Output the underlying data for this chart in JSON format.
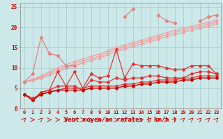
{
  "x": [
    0,
    1,
    2,
    3,
    4,
    5,
    6,
    7,
    8,
    9,
    10,
    11,
    12,
    13,
    14,
    15,
    16,
    17,
    18,
    19,
    20,
    21,
    22,
    23
  ],
  "jagged_light1": [
    6.5,
    8.5,
    17.5,
    13.5,
    13.0,
    10.5,
    10.5,
    null,
    null,
    null,
    null,
    null,
    null,
    null,
    null,
    null,
    null,
    null,
    null,
    null,
    null,
    null,
    null,
    null
  ],
  "jagged_light2": [
    6.5,
    null,
    null,
    null,
    null,
    null,
    null,
    null,
    null,
    null,
    null,
    null,
    22.5,
    24.5,
    null,
    null,
    23.0,
    21.5,
    21.0,
    null,
    null,
    21.5,
    22.5,
    23.0
  ],
  "pink_trend1": [
    6.5,
    7.2,
    8.0,
    9.0,
    10.0,
    10.8,
    11.5,
    12.2,
    12.8,
    13.4,
    14.2,
    15.0,
    15.6,
    16.2,
    16.8,
    17.4,
    18.0,
    18.6,
    19.2,
    19.7,
    20.2,
    20.7,
    21.2,
    21.8
  ],
  "pink_trend2": [
    6.5,
    7.0,
    7.7,
    8.6,
    9.5,
    10.3,
    11.0,
    11.7,
    12.3,
    12.9,
    13.7,
    14.5,
    15.1,
    15.7,
    16.3,
    16.9,
    17.5,
    18.1,
    18.7,
    19.2,
    19.7,
    20.2,
    20.7,
    21.3
  ],
  "pink_trend3": [
    6.5,
    6.8,
    7.4,
    8.2,
    9.0,
    9.8,
    10.5,
    11.2,
    11.8,
    12.4,
    13.2,
    14.0,
    14.6,
    15.2,
    15.8,
    16.4,
    17.0,
    17.6,
    18.2,
    18.7,
    19.2,
    19.7,
    20.2,
    20.8
  ],
  "red_jagged_upper": [
    3.5,
    2.0,
    4.0,
    4.5,
    9.0,
    5.5,
    9.0,
    5.0,
    8.5,
    7.5,
    8.0,
    14.5,
    7.5,
    11.0,
    10.5,
    10.5,
    10.5,
    10.0,
    9.5,
    9.5,
    10.5,
    10.5,
    10.5,
    8.5
  ],
  "red_jagged_mid": [
    3.5,
    2.0,
    4.0,
    4.5,
    5.5,
    5.5,
    5.5,
    4.5,
    7.0,
    6.5,
    6.5,
    7.5,
    7.0,
    7.5,
    7.5,
    8.0,
    8.0,
    7.5,
    7.5,
    7.5,
    8.5,
    9.0,
    9.0,
    8.5
  ],
  "red_trend_lower": [
    3.5,
    2.5,
    3.5,
    4.0,
    4.5,
    5.0,
    5.0,
    5.0,
    5.5,
    5.5,
    5.5,
    5.5,
    6.0,
    6.0,
    6.5,
    6.5,
    7.0,
    7.0,
    7.0,
    7.5,
    7.5,
    8.0,
    8.0,
    8.0
  ],
  "dark_red_trend": [
    3.5,
    2.0,
    3.5,
    4.0,
    4.5,
    4.5,
    4.5,
    4.5,
    5.0,
    5.0,
    5.0,
    5.0,
    5.5,
    5.5,
    6.0,
    6.0,
    6.5,
    6.5,
    6.5,
    7.0,
    7.0,
    7.5,
    7.5,
    7.5
  ],
  "background_color": "#cce8e8",
  "grid_color": "#b0cccc",
  "color_light_pink": "#f0a0a0",
  "color_pink": "#e88080",
  "color_red": "#e83030",
  "color_dark_red": "#cc0000",
  "xlabel": "Vent moyen/en rafales ( km/h )",
  "ylim": [
    0,
    26
  ],
  "xlim": [
    -0.5,
    23.5
  ],
  "yticks": [
    0,
    5,
    10,
    15,
    20,
    25
  ]
}
